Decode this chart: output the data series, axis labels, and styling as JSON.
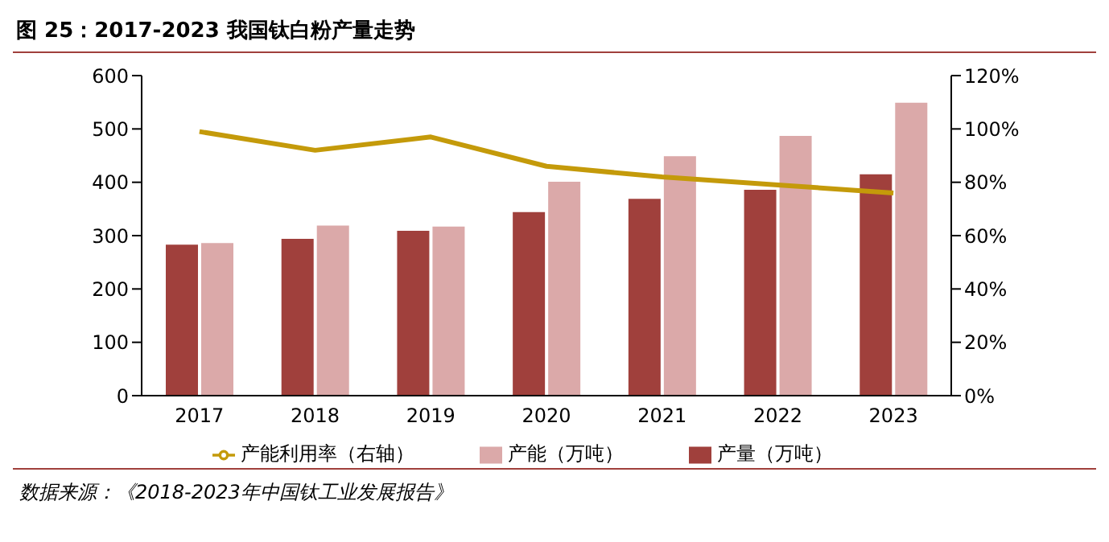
{
  "chart_data": {
    "type": "bar",
    "title": "图 25：2017-2023 我国钛白粉产量走势",
    "categories": [
      "2017",
      "2018",
      "2019",
      "2020",
      "2021",
      "2022",
      "2023"
    ],
    "series": [
      {
        "name": "产量（万吨）",
        "color": "#a0403c",
        "values": [
          283,
          294,
          309,
          344,
          369,
          386,
          415
        ]
      },
      {
        "name": "产能（万吨）",
        "color": "#dba9a9",
        "values": [
          286,
          319,
          317,
          401,
          449,
          487,
          549
        ]
      },
      {
        "name": "产能利用率（右轴）",
        "type": "line",
        "axis": "y2",
        "color": "#c49a0a",
        "values": [
          99,
          92,
          97,
          86,
          82,
          79,
          76
        ]
      }
    ],
    "ylim": [
      0,
      600
    ],
    "yticks": [
      0,
      100,
      200,
      300,
      400,
      500,
      600
    ],
    "y2lim": [
      0,
      120
    ],
    "y2ticks": [
      {
        "value": 0,
        "label": "0%"
      },
      {
        "value": 20,
        "label": "20%"
      },
      {
        "value": 40,
        "label": "40%"
      },
      {
        "value": 60,
        "label": "60%"
      },
      {
        "value": 80,
        "label": "80%"
      },
      {
        "value": 100,
        "label": "100%"
      },
      {
        "value": 120,
        "label": "120%"
      }
    ],
    "grid": false,
    "legend": "bottom",
    "marker": "none",
    "annotations": [
      "数据来源：《2018-2023年中国钛工业发展报告》"
    ]
  }
}
